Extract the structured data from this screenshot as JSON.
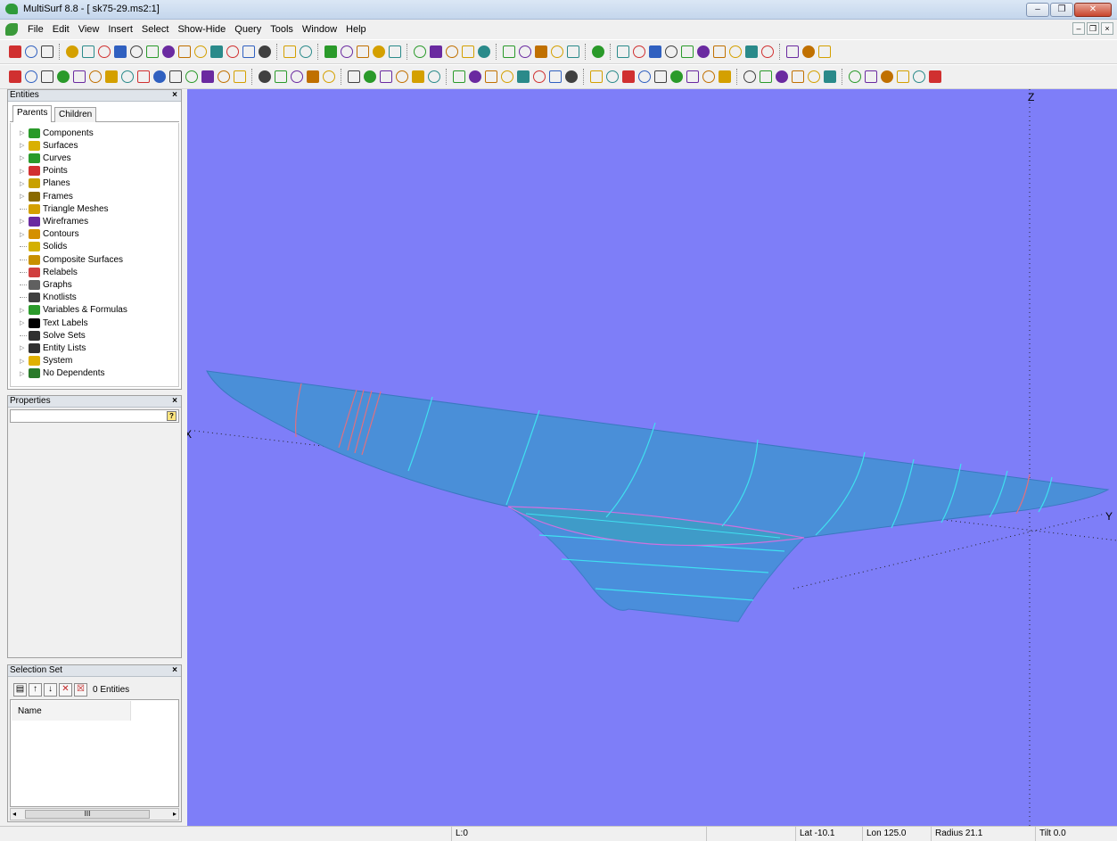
{
  "window": {
    "title": "MultiSurf 8.8 - [ sk75-29.ms2:1]",
    "minimize": "–",
    "maximize": "❐",
    "close": "✕",
    "mdi_minimize": "–",
    "mdi_restore": "❐",
    "mdi_close": "×"
  },
  "menu": [
    "File",
    "Edit",
    "View",
    "Insert",
    "Select",
    "Show-Hide",
    "Query",
    "Tools",
    "Window",
    "Help"
  ],
  "entities_panel": {
    "title": "Entities",
    "close": "×",
    "tabs": [
      "Parents",
      "Children"
    ],
    "items": [
      {
        "label": "Components",
        "icon": "components-icon",
        "color": "#2a9a2a",
        "expandable": true
      },
      {
        "label": "Surfaces",
        "icon": "surfaces-icon",
        "color": "#d9b000",
        "expandable": true
      },
      {
        "label": "Curves",
        "icon": "curves-icon",
        "color": "#2a9a2a",
        "expandable": true
      },
      {
        "label": "Points",
        "icon": "points-icon",
        "color": "#d23030",
        "expandable": true
      },
      {
        "label": "Planes",
        "icon": "planes-icon",
        "color": "#c8a000",
        "expandable": true
      },
      {
        "label": "Frames",
        "icon": "frames-icon",
        "color": "#8a6a00",
        "expandable": true
      },
      {
        "label": "Triangle Meshes",
        "icon": "triangle-meshes-icon",
        "color": "#d4a000",
        "expandable": false
      },
      {
        "label": "Wireframes",
        "icon": "wireframes-icon",
        "color": "#6a2aa0",
        "expandable": true
      },
      {
        "label": "Contours",
        "icon": "contours-icon",
        "color": "#d49000",
        "expandable": true
      },
      {
        "label": "Solids",
        "icon": "solids-icon",
        "color": "#d4b000",
        "expandable": false
      },
      {
        "label": "Composite Surfaces",
        "icon": "composite-surfaces-icon",
        "color": "#c89000",
        "expandable": false
      },
      {
        "label": "Relabels",
        "icon": "relabels-icon",
        "color": "#d04040",
        "expandable": false
      },
      {
        "label": "Graphs",
        "icon": "graphs-icon",
        "color": "#606060",
        "expandable": false
      },
      {
        "label": "Knotlists",
        "icon": "knotlists-icon",
        "color": "#404040",
        "expandable": false
      },
      {
        "label": "Variables & Formulas",
        "icon": "variables-icon",
        "color": "#2a9a2a",
        "expandable": true
      },
      {
        "label": "Text Labels",
        "icon": "text-labels-icon",
        "color": "#000000",
        "expandable": true
      },
      {
        "label": "Solve Sets",
        "icon": "solve-sets-icon",
        "color": "#303030",
        "expandable": false
      },
      {
        "label": "Entity Lists",
        "icon": "entity-lists-icon",
        "color": "#303030",
        "expandable": true
      },
      {
        "label": "System",
        "icon": "system-icon",
        "color": "#e0b000",
        "expandable": true
      },
      {
        "label": "No Dependents",
        "icon": "no-dependents-icon",
        "color": "#2a7a2a",
        "expandable": true
      }
    ]
  },
  "properties_panel": {
    "title": "Properties",
    "close": "×",
    "key_button": "?"
  },
  "selection_panel": {
    "title": "Selection Set",
    "close": "×",
    "count_label": "0 Entities",
    "column_name": "Name",
    "scroll_thumb": "III",
    "scroll_left": "◂",
    "scroll_right": "▸"
  },
  "viewport": {
    "axes": {
      "x": "X",
      "y": "Y",
      "z": "Z"
    },
    "background": "#7e7ef8",
    "hull_color": "#4a90d9",
    "station_color": "#40e0f0",
    "accent_color": "#e06070"
  },
  "status": {
    "layer": "L:0",
    "lat": "Lat -10.1",
    "lon": "Lon 125.0",
    "radius": "Radius 21.1",
    "tilt": "Tilt 0.0"
  }
}
